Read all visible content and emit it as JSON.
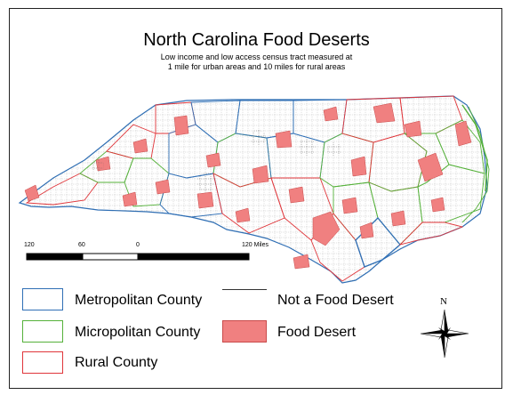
{
  "title": "North Carolina Food Deserts",
  "subtitle_lines": [
    "Low income and low access census tract measured at",
    "1 mile for urban areas and 10 miles for rural areas"
  ],
  "scale": {
    "labels": [
      "120",
      "60",
      "0",
      "120 Miles"
    ]
  },
  "legend": {
    "metro": {
      "label": "Metropolitan County",
      "color": "#2f6fb5"
    },
    "micro": {
      "label": "Micropolitan County",
      "color": "#55b13a"
    },
    "rural": {
      "label": "Rural County",
      "color": "#e0353a"
    },
    "not_desert": {
      "label": "Not a Food Desert"
    },
    "desert": {
      "label": "Food Desert",
      "color": "#f08080"
    }
  },
  "north_label": "N"
}
